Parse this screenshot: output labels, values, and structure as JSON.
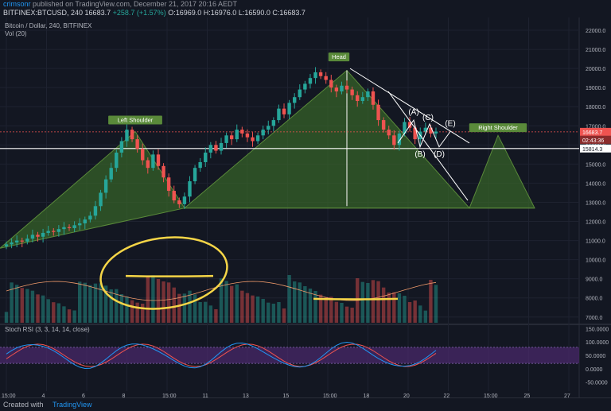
{
  "header": {
    "user": "crimsonr",
    "published_text": "published on TradingView.com, December 21, 2017 20:16 AEDT",
    "quote_line": "BITFINEX:BTCUSD, 240",
    "ohlc": "16683.7",
    "change": "+258.7 (+1.57%)",
    "open": "O:16969.0",
    "high": "H:16976.0",
    "low": "L:16590.0",
    "close": "C:16683.7"
  },
  "legend": {
    "title": "Bitcoin / Dollar, 240, BITFINEX",
    "vol": "Vol (20)",
    "stoch": "Stoch RSI (3, 3, 14, 14, close)"
  },
  "footer": {
    "created": "Created with",
    "brand": "TradingView"
  },
  "annotations": {
    "head": "Head",
    "left_shoulder": "Left Shoulder",
    "right_shoulder": "Right Shoulder",
    "A": "(A)",
    "B": "(B)",
    "C": "(C)",
    "D": "(D)",
    "E": "(E)"
  },
  "price_tags": {
    "last": "16683.7",
    "timer": "02:43:36",
    "line": "15814.3"
  },
  "colors": {
    "bg": "#131722",
    "up": "#26a69a",
    "down": "#ef5350",
    "pattern_fill": "#3b6b2a",
    "highlight": "#f5d547",
    "stoch_k": "#2196f3",
    "stoch_d": "#ef5350",
    "stoch_band": "#4b2a6e"
  },
  "chart_data": {
    "type": "candlestick",
    "title": "Bitcoin / Dollar, 240, BITFINEX",
    "y_ticks": [
      22000,
      21000,
      20000,
      19000,
      18000,
      17000,
      16000,
      15000,
      14000,
      13000,
      12000,
      11000,
      10000,
      9000,
      8000,
      7000
    ],
    "y_range": [
      6700,
      22500
    ],
    "x_ticks": [
      "15:00",
      "4",
      "6",
      "8",
      "15:00",
      "11",
      "13",
      "15",
      "15:00",
      "18",
      "20",
      "22",
      "15:00",
      "25",
      "27"
    ],
    "stoch_ticks": [
      "150.0000",
      "100.0000",
      "50.0000",
      "0.0000",
      "-50.0000"
    ],
    "stoch_range": [
      -60,
      160
    ],
    "closes": [
      10800,
      10900,
      11000,
      10950,
      11100,
      11300,
      11200,
      11400,
      11500,
      11450,
      11600,
      11700,
      11650,
      11800,
      11900,
      12100,
      12300,
      12800,
      13500,
      14200,
      14800,
      15600,
      16200,
      16800,
      16300,
      15800,
      15200,
      14800,
      15500,
      14900,
      14300,
      13600,
      13100,
      12900,
      13300,
      14100,
      14800,
      15100,
      15600,
      16000,
      15700,
      16100,
      16500,
      16300,
      16800,
      16600,
      16400,
      16200,
      16500,
      16800,
      17000,
      17300,
      17900,
      17600,
      18200,
      18500,
      18900,
      19200,
      19500,
      19800,
      19600,
      19400,
      19000,
      18800,
      19100,
      18900,
      18600,
      18300,
      18500,
      18800,
      18100,
      17300,
      16800,
      16500,
      16000,
      16600,
      17200,
      16900,
      16300,
      16700,
      16900,
      16600,
      16700
    ]
  }
}
